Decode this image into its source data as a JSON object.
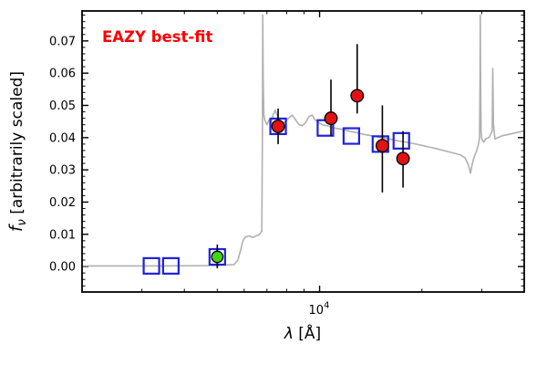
{
  "chart_data": {
    "type": "line+scatter",
    "annotation": {
      "text": "EAZY best-fit",
      "color": "#ff0000"
    },
    "xlabel": {
      "symbol": "λ",
      "rest": " [Å]"
    },
    "ylabel": {
      "f": "f",
      "sub": "ν",
      "rest": " [arbitrarily scaled]"
    },
    "xscale": "log",
    "xlim": [
      2000,
      40000
    ],
    "ylim": [
      -0.0079,
      0.0793
    ],
    "grid": false,
    "legend": "none",
    "xticks": {
      "major": [
        {
          "value": 10000,
          "base": "10",
          "exp": "4"
        }
      ],
      "minor": [
        3000,
        4000,
        5000,
        6000,
        7000,
        8000,
        9000,
        20000,
        30000
      ]
    },
    "yticks": {
      "values": [
        0,
        0.01,
        0.02,
        0.03,
        0.04,
        0.05,
        0.06,
        0.07
      ],
      "labels": [
        "0.00",
        "0.01",
        "0.02",
        "0.03",
        "0.04",
        "0.05",
        "0.06",
        "0.07"
      ],
      "minor_step": 0.002
    },
    "series": [
      {
        "name": "model-spectrum",
        "type": "line",
        "color": "#b0b0b0",
        "width": 1.6,
        "points": [
          [
            2000,
            0.0002
          ],
          [
            3500,
            0.0002
          ],
          [
            5000,
            0.0003
          ],
          [
            5600,
            0.0006
          ],
          [
            5750,
            0.002
          ],
          [
            5850,
            0.005
          ],
          [
            5950,
            0.008
          ],
          [
            6050,
            0.0092
          ],
          [
            6200,
            0.0095
          ],
          [
            6350,
            0.009
          ],
          [
            6500,
            0.0095
          ],
          [
            6650,
            0.0099
          ],
          [
            6760,
            0.011
          ],
          [
            6790,
            0.045
          ],
          [
            6805,
            0.078
          ],
          [
            6825,
            0.058
          ],
          [
            6855,
            0.047
          ],
          [
            6900,
            0.0455
          ],
          [
            7000,
            0.044
          ],
          [
            7100,
            0.0455
          ],
          [
            7200,
            0.0445
          ],
          [
            7300,
            0.047
          ],
          [
            7400,
            0.0485
          ],
          [
            7500,
            0.047
          ],
          [
            7600,
            0.0455
          ],
          [
            7750,
            0.0445
          ],
          [
            7900,
            0.0448
          ],
          [
            8100,
            0.046
          ],
          [
            8300,
            0.047
          ],
          [
            8500,
            0.0455
          ],
          [
            8700,
            0.044
          ],
          [
            8900,
            0.0437
          ],
          [
            9100,
            0.0447
          ],
          [
            9300,
            0.0465
          ],
          [
            9500,
            0.047
          ],
          [
            9700,
            0.0455
          ],
          [
            9900,
            0.0447
          ],
          [
            10200,
            0.044
          ],
          [
            10600,
            0.0436
          ],
          [
            11000,
            0.043
          ],
          [
            11600,
            0.0426
          ],
          [
            12200,
            0.042
          ],
          [
            12800,
            0.0416
          ],
          [
            13500,
            0.041
          ],
          [
            14200,
            0.0406
          ],
          [
            15000,
            0.0401
          ],
          [
            16000,
            0.0396
          ],
          [
            17000,
            0.039
          ],
          [
            18000,
            0.0386
          ],
          [
            19000,
            0.0381
          ],
          [
            20000,
            0.0376
          ],
          [
            21000,
            0.0371
          ],
          [
            22000,
            0.0366
          ],
          [
            23000,
            0.0361
          ],
          [
            24000,
            0.0356
          ],
          [
            25000,
            0.0351
          ],
          [
            26000,
            0.0346
          ],
          [
            26800,
            0.0337
          ],
          [
            27400,
            0.0316
          ],
          [
            27800,
            0.029
          ],
          [
            28100,
            0.0316
          ],
          [
            28500,
            0.034
          ],
          [
            29000,
            0.036
          ],
          [
            29300,
            0.0376
          ],
          [
            29550,
            0.04
          ],
          [
            29650,
            0.056
          ],
          [
            29700,
            0.078
          ],
          [
            29780,
            0.056
          ],
          [
            29860,
            0.042
          ],
          [
            30000,
            0.0396
          ],
          [
            30400,
            0.0386
          ],
          [
            30800,
            0.0396
          ],
          [
            31500,
            0.04
          ],
          [
            32200,
            0.042
          ],
          [
            32330,
            0.0615
          ],
          [
            32480,
            0.044
          ],
          [
            32800,
            0.0396
          ],
          [
            33500,
            0.04
          ],
          [
            34500,
            0.0406
          ],
          [
            36000,
            0.041
          ],
          [
            38000,
            0.0416
          ],
          [
            40000,
            0.042
          ]
        ]
      },
      {
        "name": "model-photometry-squares",
        "type": "square",
        "color": "#2121de",
        "size": 17,
        "stroke_width": 2.2,
        "points": [
          [
            3200,
            0.0002
          ],
          [
            3650,
            0.0002
          ],
          [
            5000,
            0.003
          ],
          [
            7550,
            0.0435
          ],
          [
            10400,
            0.043
          ],
          [
            12400,
            0.0405
          ],
          [
            15100,
            0.038
          ],
          [
            17400,
            0.039
          ]
        ]
      },
      {
        "name": "observed-photometry-red",
        "type": "circle",
        "color": "#e11212",
        "edge": "#000000",
        "radius": 6.8,
        "errorbar_color": "#000000",
        "points": [
          {
            "x": 7550,
            "y": 0.0435,
            "lo": 0.038,
            "hi": 0.049
          },
          {
            "x": 10800,
            "y": 0.046,
            "lo": 0.0405,
            "hi": 0.058
          },
          {
            "x": 12900,
            "y": 0.053,
            "lo": 0.0475,
            "hi": 0.069
          },
          {
            "x": 15300,
            "y": 0.0375,
            "lo": 0.023,
            "hi": 0.05
          },
          {
            "x": 17600,
            "y": 0.0335,
            "lo": 0.0245,
            "hi": 0.042
          }
        ]
      },
      {
        "name": "observed-photometry-green",
        "type": "circle",
        "color": "#44d512",
        "edge": "#000000",
        "radius": 6.2,
        "errorbar_color": "#000000",
        "points": [
          {
            "x": 5000,
            "y": 0.003,
            "lo": -0.0005,
            "hi": 0.0068
          }
        ]
      }
    ]
  }
}
